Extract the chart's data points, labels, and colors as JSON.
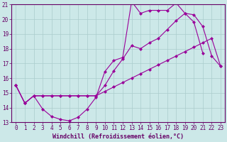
{
  "background_color": "#cce8e8",
  "grid_color": "#aacccc",
  "line_color": "#990099",
  "marker_color": "#990099",
  "xlabel": "Windchill (Refroidissement éolien,°C)",
  "xlim": [
    -0.5,
    23.5
  ],
  "ylim": [
    13,
    21
  ],
  "yticks": [
    13,
    14,
    15,
    16,
    17,
    18,
    19,
    20,
    21
  ],
  "xticks": [
    0,
    1,
    2,
    3,
    4,
    5,
    6,
    7,
    8,
    9,
    10,
    11,
    12,
    13,
    14,
    15,
    16,
    17,
    18,
    19,
    20,
    21,
    22,
    23
  ],
  "line1_x": [
    0,
    1,
    2,
    3,
    4,
    5,
    6,
    7,
    8,
    9,
    10,
    11,
    12,
    13,
    14,
    15,
    16,
    17,
    18,
    19,
    20,
    21
  ],
  "line1_y": [
    15.5,
    14.3,
    14.8,
    13.9,
    13.4,
    13.2,
    13.1,
    13.35,
    13.9,
    14.7,
    16.45,
    17.2,
    17.4,
    21.2,
    20.4,
    20.6,
    20.6,
    20.6,
    21.1,
    20.4,
    19.8,
    17.7
  ],
  "line2_x": [
    0,
    1,
    2,
    3,
    4,
    5,
    6,
    7,
    8,
    9,
    10,
    11,
    12,
    13,
    14,
    15,
    16,
    17,
    18,
    19,
    20,
    21,
    22,
    23
  ],
  "line2_y": [
    15.5,
    14.3,
    14.8,
    14.8,
    14.8,
    14.8,
    14.8,
    14.8,
    14.8,
    14.8,
    15.1,
    15.4,
    15.7,
    16.0,
    16.3,
    16.6,
    16.9,
    17.2,
    17.5,
    17.8,
    18.1,
    18.4,
    18.7,
    16.8
  ],
  "line3_x": [
    0,
    1,
    2,
    3,
    4,
    5,
    6,
    7,
    8,
    9,
    10,
    11,
    12,
    13,
    14,
    15,
    16,
    17,
    18,
    19,
    20,
    21,
    22,
    23
  ],
  "line3_y": [
    15.5,
    14.3,
    14.8,
    14.8,
    14.8,
    14.8,
    14.8,
    14.8,
    14.8,
    14.8,
    15.5,
    16.5,
    17.3,
    18.2,
    18.0,
    18.4,
    18.7,
    19.3,
    19.9,
    20.4,
    20.3,
    19.5,
    17.5,
    16.8
  ],
  "marker_size": 2,
  "linewidth": 0.8,
  "tick_color": "#660066",
  "tick_label_color": "#660066",
  "xlabel_color": "#660066",
  "xlabel_fontsize": 6,
  "tick_fontsize": 5.5,
  "spine_color": "#660066"
}
